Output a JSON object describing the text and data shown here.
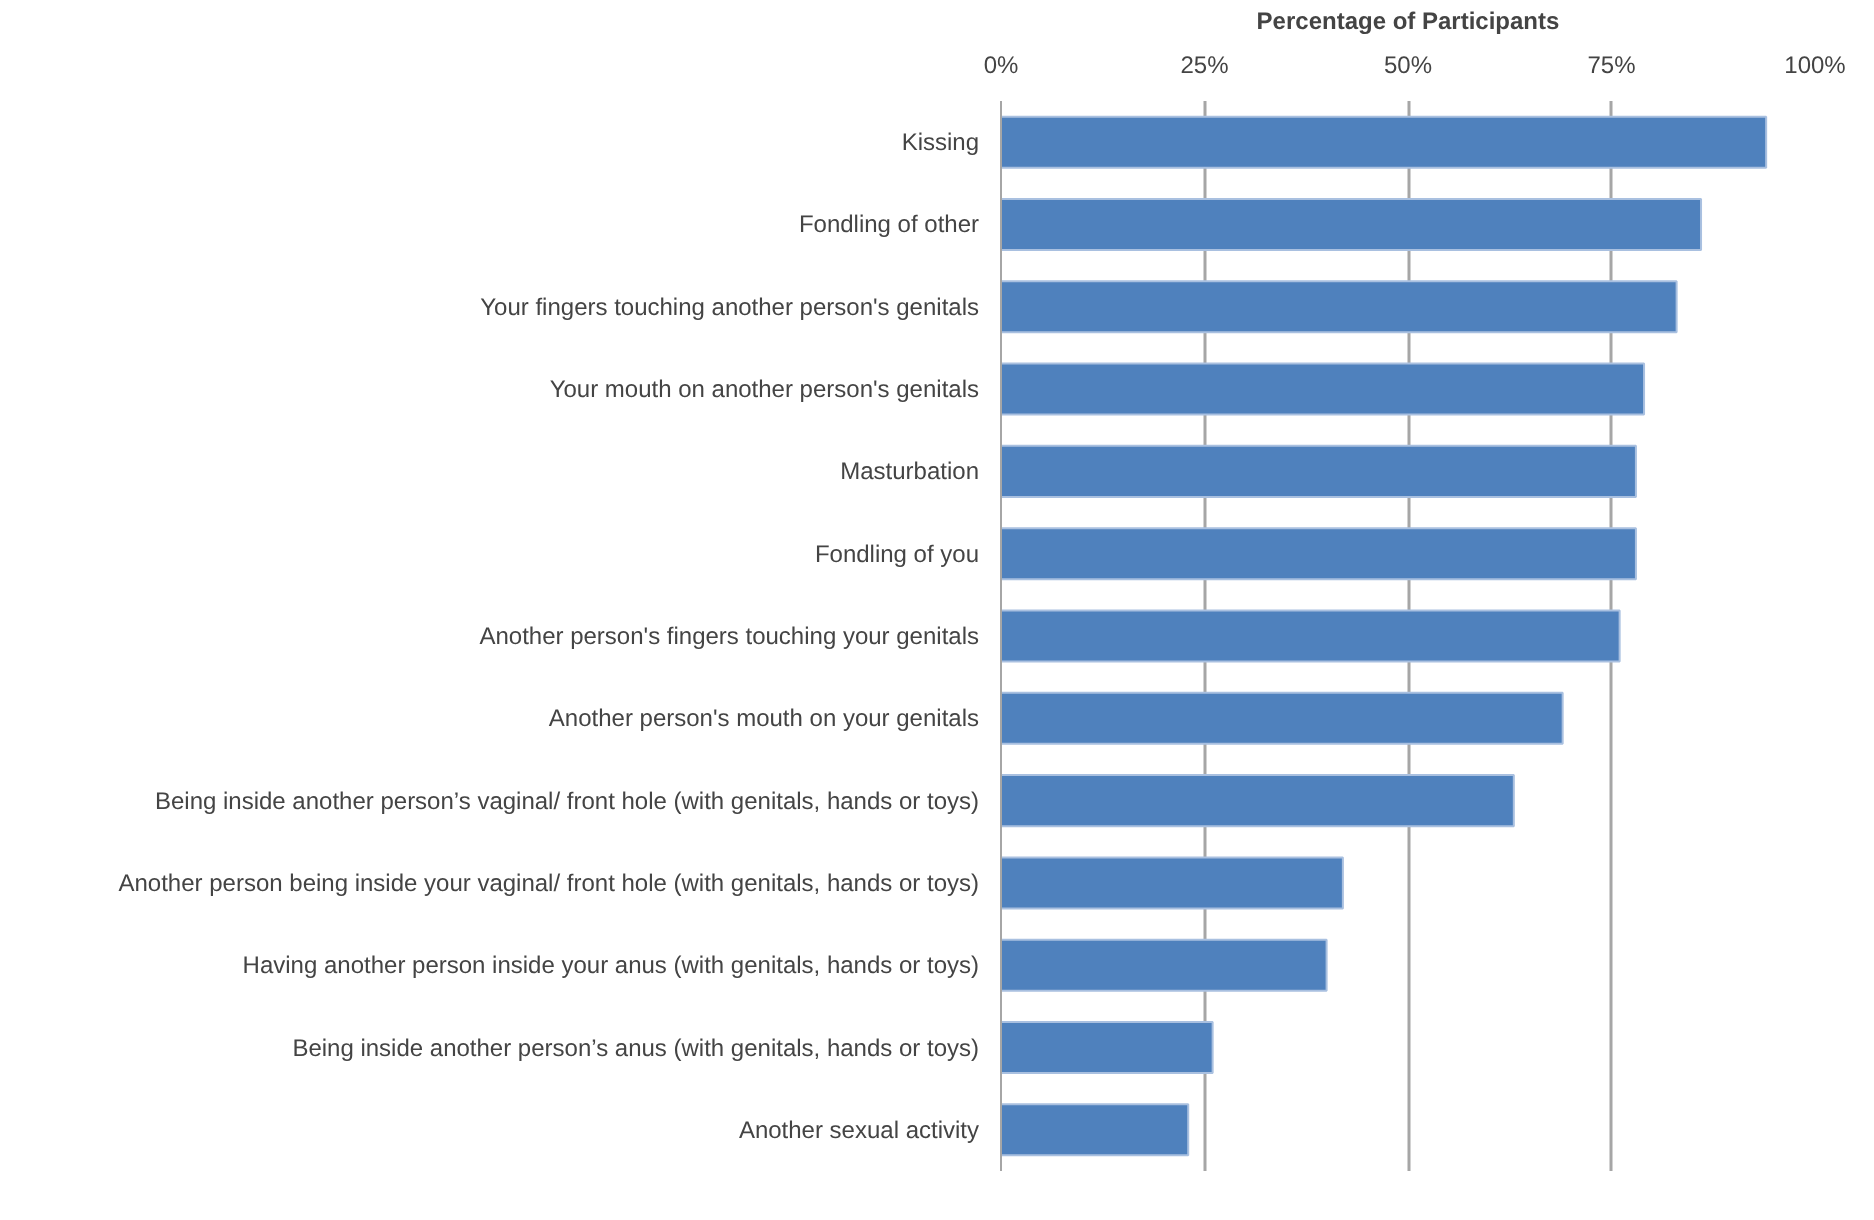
{
  "chart_data": {
    "type": "bar",
    "orientation": "horizontal",
    "xlabel": "Percentage of Participants",
    "categories": [
      "Kissing",
      "Fondling of other",
      "Your fingers touching another person's genitals",
      "Your mouth on another person's genitals",
      "Masturbation",
      "Fondling of you",
      "Another person's fingers touching your genitals",
      "Another person's mouth on your genitals",
      "Being inside another person’s vaginal/ front hole (with genitals, hands or toys)",
      "Another person being inside your vaginal/ front hole (with genitals, hands or toys)",
      "Having another person inside your anus (with genitals, hands or toys)",
      "Being inside another person’s anus (with genitals, hands or toys)",
      "Another sexual activity"
    ],
    "values": [
      94,
      86,
      83,
      79,
      78,
      78,
      76,
      69,
      63,
      42,
      40,
      26,
      23
    ],
    "color": "#4f81bd",
    "xlim": [
      0,
      100
    ],
    "xticks": [
      {
        "value": 0,
        "label": "0%"
      },
      {
        "value": 25,
        "label": "25%"
      },
      {
        "value": 50,
        "label": "50%"
      },
      {
        "value": 75,
        "label": "75%"
      },
      {
        "value": 100,
        "label": "100%"
      }
    ],
    "grid": "x"
  }
}
